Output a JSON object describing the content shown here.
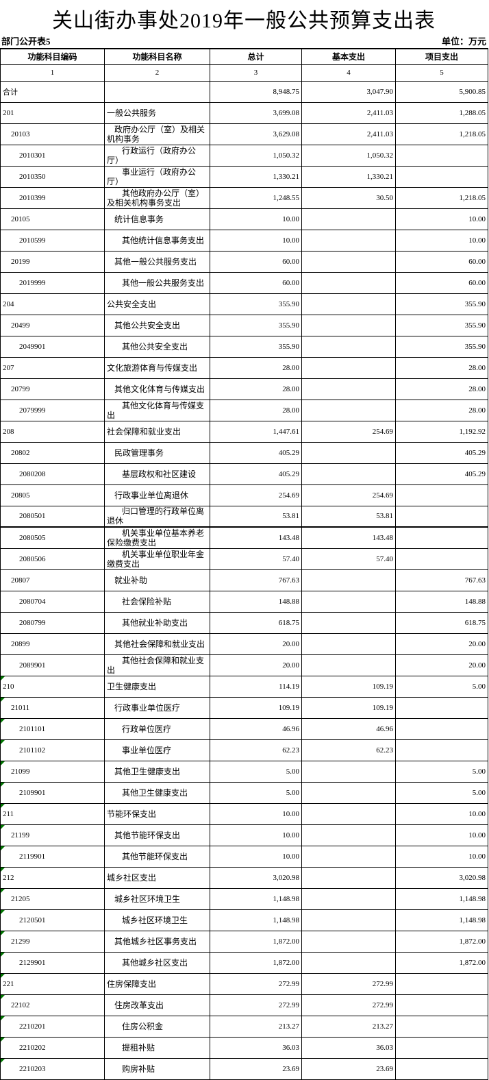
{
  "title": "关山街办事处2019年一般公共预算支出表",
  "meta": {
    "left": "部门公开表5",
    "right": "单位：万元"
  },
  "colors": {
    "border": "#000000",
    "background": "#ffffff",
    "flag_green": "#007500"
  },
  "table": {
    "headers": [
      "功能科目编码",
      "功能科目名称",
      "总计",
      "基本支出",
      "项目支出"
    ],
    "column_numbers": [
      "1",
      "2",
      "3",
      "4",
      "5"
    ],
    "rows": [
      {
        "code": "合计",
        "level": 0,
        "name": "",
        "total": "8,948.75",
        "basic": "3,047.90",
        "project": "5,900.85",
        "flagged": false,
        "thick_bottom": false
      },
      {
        "code": "201",
        "level": 1,
        "name": "一般公共服务",
        "total": "3,699.08",
        "basic": "2,411.03",
        "project": "1,288.05",
        "flagged": false,
        "thick_bottom": false
      },
      {
        "code": "20103",
        "level": 2,
        "name": "政府办公厅（室）及相关机构事务",
        "total": "3,629.08",
        "basic": "2,411.03",
        "project": "1,218.05",
        "flagged": false,
        "thick_bottom": false
      },
      {
        "code": "2010301",
        "level": 3,
        "name": "行政运行（政府办公厅）",
        "total": "1,050.32",
        "basic": "1,050.32",
        "project": "",
        "flagged": false,
        "thick_bottom": false
      },
      {
        "code": "2010350",
        "level": 3,
        "name": "事业运行（政府办公厅）",
        "total": "1,330.21",
        "basic": "1,330.21",
        "project": "",
        "flagged": false,
        "thick_bottom": false
      },
      {
        "code": "2010399",
        "level": 3,
        "name": "其他政府办公厅（室）及相关机构事务支出",
        "total": "1,248.55",
        "basic": "30.50",
        "project": "1,218.05",
        "flagged": false,
        "thick_bottom": false
      },
      {
        "code": "20105",
        "level": 2,
        "name": "统计信息事务",
        "total": "10.00",
        "basic": "",
        "project": "10.00",
        "flagged": false,
        "thick_bottom": false
      },
      {
        "code": "2010599",
        "level": 3,
        "name": "其他统计信息事务支出",
        "total": "10.00",
        "basic": "",
        "project": "10.00",
        "flagged": false,
        "thick_bottom": false
      },
      {
        "code": "20199",
        "level": 2,
        "name": "其他一般公共服务支出",
        "total": "60.00",
        "basic": "",
        "project": "60.00",
        "flagged": false,
        "thick_bottom": false
      },
      {
        "code": "2019999",
        "level": 3,
        "name": "其他一般公共服务支出",
        "total": "60.00",
        "basic": "",
        "project": "60.00",
        "flagged": false,
        "thick_bottom": false
      },
      {
        "code": "204",
        "level": 1,
        "name": "公共安全支出",
        "total": "355.90",
        "basic": "",
        "project": "355.90",
        "flagged": false,
        "thick_bottom": false
      },
      {
        "code": "20499",
        "level": 2,
        "name": "其他公共安全支出",
        "total": "355.90",
        "basic": "",
        "project": "355.90",
        "flagged": false,
        "thick_bottom": false
      },
      {
        "code": "2049901",
        "level": 3,
        "name": "其他公共安全支出",
        "total": "355.90",
        "basic": "",
        "project": "355.90",
        "flagged": false,
        "thick_bottom": false
      },
      {
        "code": "207",
        "level": 1,
        "name": "文化旅游体育与传媒支出",
        "total": "28.00",
        "basic": "",
        "project": "28.00",
        "flagged": false,
        "thick_bottom": false
      },
      {
        "code": "20799",
        "level": 2,
        "name": "其他文化体育与传媒支出",
        "total": "28.00",
        "basic": "",
        "project": "28.00",
        "flagged": false,
        "thick_bottom": false
      },
      {
        "code": "2079999",
        "level": 3,
        "name": "其他文化体育与传媒支出",
        "total": "28.00",
        "basic": "",
        "project": "28.00",
        "flagged": false,
        "thick_bottom": false
      },
      {
        "code": "208",
        "level": 1,
        "name": "社会保障和就业支出",
        "total": "1,447.61",
        "basic": "254.69",
        "project": "1,192.92",
        "flagged": false,
        "thick_bottom": false
      },
      {
        "code": "20802",
        "level": 2,
        "name": "民政管理事务",
        "total": "405.29",
        "basic": "",
        "project": "405.29",
        "flagged": false,
        "thick_bottom": false
      },
      {
        "code": "2080208",
        "level": 3,
        "name": "基层政权和社区建设",
        "total": "405.29",
        "basic": "",
        "project": "405.29",
        "flagged": false,
        "thick_bottom": false
      },
      {
        "code": "20805",
        "level": 2,
        "name": "行政事业单位离退休",
        "total": "254.69",
        "basic": "254.69",
        "project": "",
        "flagged": false,
        "thick_bottom": false
      },
      {
        "code": "2080501",
        "level": 3,
        "name": "归口管理的行政单位离退休",
        "total": "53.81",
        "basic": "53.81",
        "project": "",
        "flagged": false,
        "thick_bottom": true
      },
      {
        "code": "2080505",
        "level": 3,
        "name": "机关事业单位基本养老保险缴费支出",
        "total": "143.48",
        "basic": "143.48",
        "project": "",
        "flagged": false,
        "thick_bottom": false
      },
      {
        "code": "2080506",
        "level": 3,
        "name": "机关事业单位职业年金缴费支出",
        "total": "57.40",
        "basic": "57.40",
        "project": "",
        "flagged": false,
        "thick_bottom": false
      },
      {
        "code": "20807",
        "level": 2,
        "name": "就业补助",
        "total": "767.63",
        "basic": "",
        "project": "767.63",
        "flagged": false,
        "thick_bottom": false
      },
      {
        "code": "2080704",
        "level": 3,
        "name": "社会保险补贴",
        "total": "148.88",
        "basic": "",
        "project": "148.88",
        "flagged": false,
        "thick_bottom": false
      },
      {
        "code": "2080799",
        "level": 3,
        "name": "其他就业补助支出",
        "total": "618.75",
        "basic": "",
        "project": "618.75",
        "flagged": false,
        "thick_bottom": false
      },
      {
        "code": "20899",
        "level": 2,
        "name": "其他社会保障和就业支出",
        "total": "20.00",
        "basic": "",
        "project": "20.00",
        "flagged": false,
        "thick_bottom": false
      },
      {
        "code": "2089901",
        "level": 3,
        "name": "其他社会保障和就业支出",
        "total": "20.00",
        "basic": "",
        "project": "20.00",
        "flagged": false,
        "thick_bottom": false
      },
      {
        "code": "210",
        "level": 1,
        "name": "卫生健康支出",
        "total": "114.19",
        "basic": "109.19",
        "project": "5.00",
        "flagged": true,
        "thick_bottom": false
      },
      {
        "code": "21011",
        "level": 2,
        "name": "行政事业单位医疗",
        "total": "109.19",
        "basic": "109.19",
        "project": "",
        "flagged": true,
        "thick_bottom": false
      },
      {
        "code": "2101101",
        "level": 3,
        "name": "行政单位医疗",
        "total": "46.96",
        "basic": "46.96",
        "project": "",
        "flagged": true,
        "thick_bottom": false
      },
      {
        "code": "2101102",
        "level": 3,
        "name": "事业单位医疗",
        "total": "62.23",
        "basic": "62.23",
        "project": "",
        "flagged": true,
        "thick_bottom": false
      },
      {
        "code": "21099",
        "level": 2,
        "name": "其他卫生健康支出",
        "total": "5.00",
        "basic": "",
        "project": "5.00",
        "flagged": true,
        "thick_bottom": false
      },
      {
        "code": "2109901",
        "level": 3,
        "name": "其他卫生健康支出",
        "total": "5.00",
        "basic": "",
        "project": "5.00",
        "flagged": true,
        "thick_bottom": false
      },
      {
        "code": "211",
        "level": 1,
        "name": "节能环保支出",
        "total": "10.00",
        "basic": "",
        "project": "10.00",
        "flagged": true,
        "thick_bottom": false
      },
      {
        "code": "21199",
        "level": 2,
        "name": "其他节能环保支出",
        "total": "10.00",
        "basic": "",
        "project": "10.00",
        "flagged": true,
        "thick_bottom": false
      },
      {
        "code": "2119901",
        "level": 3,
        "name": "其他节能环保支出",
        "total": "10.00",
        "basic": "",
        "project": "10.00",
        "flagged": true,
        "thick_bottom": false
      },
      {
        "code": "212",
        "level": 1,
        "name": "城乡社区支出",
        "total": "3,020.98",
        "basic": "",
        "project": "3,020.98",
        "flagged": true,
        "thick_bottom": false
      },
      {
        "code": "21205",
        "level": 2,
        "name": "城乡社区环境卫生",
        "total": "1,148.98",
        "basic": "",
        "project": "1,148.98",
        "flagged": true,
        "thick_bottom": false
      },
      {
        "code": "2120501",
        "level": 3,
        "name": "城乡社区环境卫生",
        "total": "1,148.98",
        "basic": "",
        "project": "1,148.98",
        "flagged": true,
        "thick_bottom": false
      },
      {
        "code": "21299",
        "level": 2,
        "name": "其他城乡社区事务支出",
        "total": "1,872.00",
        "basic": "",
        "project": "1,872.00",
        "flagged": true,
        "thick_bottom": false
      },
      {
        "code": "2129901",
        "level": 3,
        "name": "其他城乡社区支出",
        "total": "1,872.00",
        "basic": "",
        "project": "1,872.00",
        "flagged": true,
        "thick_bottom": false
      },
      {
        "code": "221",
        "level": 1,
        "name": "住房保障支出",
        "total": "272.99",
        "basic": "272.99",
        "project": "",
        "flagged": true,
        "thick_bottom": false
      },
      {
        "code": "22102",
        "level": 2,
        "name": "住房改革支出",
        "total": "272.99",
        "basic": "272.99",
        "project": "",
        "flagged": true,
        "thick_bottom": false
      },
      {
        "code": "2210201",
        "level": 3,
        "name": "住房公积金",
        "total": "213.27",
        "basic": "213.27",
        "project": "",
        "flagged": true,
        "thick_bottom": false
      },
      {
        "code": "2210202",
        "level": 3,
        "name": "提租补贴",
        "total": "36.03",
        "basic": "36.03",
        "project": "",
        "flagged": true,
        "thick_bottom": false
      },
      {
        "code": "2210203",
        "level": 3,
        "name": "购房补贴",
        "total": "23.69",
        "basic": "23.69",
        "project": "",
        "flagged": true,
        "thick_bottom": false
      }
    ]
  }
}
